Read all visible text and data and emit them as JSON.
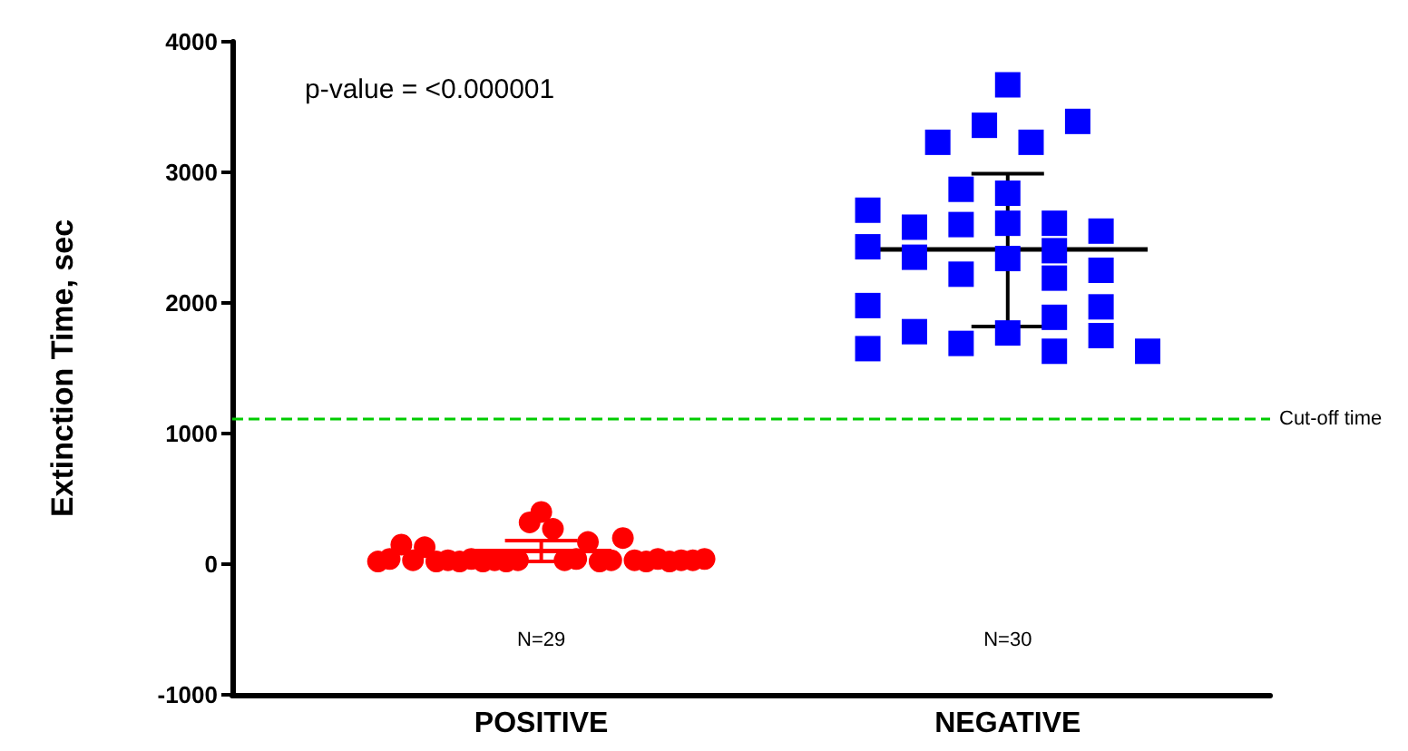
{
  "chart_data": {
    "type": "scatter",
    "ylabel": "Extinction Time, sec",
    "annotations": [
      "p-value = <0.000001",
      "N=29",
      "N=30"
    ],
    "categories": [
      null,
      null,
      null,
      null,
      null,
      null,
      null,
      null,
      null,
      null,
      null,
      null,
      null,
      null,
      null,
      null,
      null,
      null,
      null,
      null,
      null,
      null,
      null,
      null,
      null,
      null,
      "POSITIVE",
      null,
      null,
      null,
      null,
      null,
      null,
      null,
      null,
      null,
      null,
      null,
      null,
      null,
      null,
      null,
      null,
      null,
      null,
      null,
      null,
      null,
      null,
      null,
      null,
      null,
      null,
      null,
      null,
      null,
      null,
      null,
      null,
      null,
      null,
      null,
      null,
      null,
      null,
      null,
      "NEGATIVE",
      null,
      null,
      null,
      null,
      null,
      null,
      null,
      null,
      null,
      null,
      null,
      null,
      null,
      null,
      null,
      null,
      null,
      null,
      null,
      null,
      null,
      null
    ],
    "ylim": [
      -1000,
      4000
    ],
    "yticks": [
      -1000,
      0,
      1000,
      2000,
      3000,
      4000
    ],
    "grid": false,
    "ref_lines": [
      {
        "axis": "y",
        "value": 1110,
        "label": "Cut-off time",
        "color": "#00cc00",
        "line_style": "dashed"
      }
    ],
    "series": [
      {
        "color": "#ff0000",
        "marker": "circle",
        "values": [
          null,
          null,
          null,
          null,
          null,
          null,
          null,
          null,
          null,
          null,
          null,
          null,
          20,
          40,
          150,
          30,
          130,
          20,
          30,
          20,
          40,
          20,
          30,
          20,
          30,
          320,
          400,
          270,
          30,
          40,
          170,
          20,
          30,
          200,
          30,
          20,
          40,
          20,
          30,
          30,
          40,
          null,
          null,
          null,
          null,
          null,
          null,
          null,
          null,
          null,
          null,
          null,
          null,
          null,
          null,
          null,
          null,
          null,
          null,
          null,
          null,
          null,
          null,
          null,
          null,
          null,
          null,
          null,
          null,
          null,
          null,
          null,
          null,
          null,
          null,
          null,
          null,
          null,
          null,
          null,
          null,
          null,
          null,
          null,
          null,
          null,
          null,
          null,
          null
        ]
      },
      {
        "type": "line",
        "color": "#ff0000",
        "values": [
          null,
          null,
          null,
          null,
          null,
          null,
          null,
          null,
          null,
          null,
          null,
          null,
          null,
          null,
          null,
          null,
          null,
          null,
          null,
          null,
          100,
          100,
          100,
          100,
          100,
          100,
          100,
          100,
          100,
          100,
          100,
          100,
          100,
          null,
          null,
          null,
          null,
          null,
          null,
          null,
          null,
          null,
          null,
          null,
          null,
          null,
          null,
          null,
          null,
          null,
          null,
          null,
          null,
          null,
          null,
          null,
          null,
          null,
          null,
          null,
          null,
          null,
          null,
          null,
          null,
          null,
          null,
          null,
          null,
          null,
          null,
          null,
          null,
          null,
          null,
          null,
          null,
          null,
          null,
          null,
          null,
          null,
          null,
          null,
          null,
          null,
          null,
          null,
          null
        ],
        "errors": [
          null,
          null,
          null,
          null,
          null,
          null,
          null,
          null,
          null,
          null,
          null,
          null,
          null,
          null,
          null,
          null,
          null,
          null,
          null,
          null,
          null,
          null,
          null,
          null,
          null,
          null,
          [
            20,
            180
          ],
          null,
          null,
          null,
          null,
          null,
          null,
          null,
          null,
          null,
          null,
          null,
          null,
          null,
          null,
          null,
          null,
          null,
          null,
          null,
          null,
          null,
          null,
          null,
          null,
          null,
          null,
          null,
          null,
          null,
          null,
          null,
          null,
          null,
          null,
          null,
          null,
          null,
          null,
          null,
          null,
          null,
          null,
          null,
          null,
          null,
          null,
          null,
          null,
          null,
          null,
          null,
          null,
          null,
          null,
          null,
          null,
          null,
          null,
          null,
          null,
          null,
          null
        ]
      },
      {
        "color": "#0000ff",
        "marker": "square",
        "values": [
          null,
          null,
          null,
          null,
          null,
          null,
          null,
          null,
          null,
          null,
          null,
          null,
          null,
          null,
          null,
          null,
          null,
          null,
          null,
          null,
          null,
          null,
          null,
          null,
          null,
          null,
          null,
          null,
          null,
          null,
          null,
          null,
          null,
          null,
          null,
          null,
          null,
          null,
          null,
          null,
          null,
          null,
          null,
          null,
          null,
          null,
          null,
          null,
          null,
          null,
          null,
          null,
          null,
          null,
          2710,
          null,
          null,
          null,
          2580,
          null,
          3230,
          null,
          2870,
          null,
          3360,
          null,
          3670,
          null,
          3230,
          null,
          2610,
          null,
          3390,
          null,
          2550,
          null,
          null,
          null,
          1630,
          null,
          null,
          null,
          null,
          null,
          null,
          null,
          null,
          null,
          null
        ]
      },
      {
        "color": "#0000ff",
        "marker": "square",
        "values": [
          null,
          null,
          null,
          null,
          null,
          null,
          null,
          null,
          null,
          null,
          null,
          null,
          null,
          null,
          null,
          null,
          null,
          null,
          null,
          null,
          null,
          null,
          null,
          null,
          null,
          null,
          null,
          null,
          null,
          null,
          null,
          null,
          null,
          null,
          null,
          null,
          null,
          null,
          null,
          null,
          null,
          null,
          null,
          null,
          null,
          null,
          null,
          null,
          null,
          null,
          null,
          null,
          null,
          null,
          2430,
          null,
          null,
          null,
          2350,
          null,
          null,
          null,
          2600,
          null,
          null,
          null,
          2840,
          null,
          null,
          null,
          2400,
          null,
          null,
          null,
          2250,
          null,
          null,
          null,
          null,
          null,
          null,
          null,
          null,
          null,
          null,
          null,
          null,
          null,
          null
        ]
      },
      {
        "color": "#0000ff",
        "marker": "square",
        "values": [
          null,
          null,
          null,
          null,
          null,
          null,
          null,
          null,
          null,
          null,
          null,
          null,
          null,
          null,
          null,
          null,
          null,
          null,
          null,
          null,
          null,
          null,
          null,
          null,
          null,
          null,
          null,
          null,
          null,
          null,
          null,
          null,
          null,
          null,
          null,
          null,
          null,
          null,
          null,
          null,
          null,
          null,
          null,
          null,
          null,
          null,
          null,
          null,
          null,
          null,
          null,
          null,
          null,
          null,
          1980,
          null,
          null,
          null,
          1780,
          null,
          null,
          null,
          2220,
          null,
          null,
          null,
          2610,
          null,
          null,
          null,
          2190,
          null,
          null,
          null,
          1970,
          null,
          null,
          null,
          null,
          null,
          null,
          null,
          null,
          null,
          null,
          null,
          null,
          null,
          null
        ]
      },
      {
        "color": "#0000ff",
        "marker": "square",
        "values": [
          null,
          null,
          null,
          null,
          null,
          null,
          null,
          null,
          null,
          null,
          null,
          null,
          null,
          null,
          null,
          null,
          null,
          null,
          null,
          null,
          null,
          null,
          null,
          null,
          null,
          null,
          null,
          null,
          null,
          null,
          null,
          null,
          null,
          null,
          null,
          null,
          null,
          null,
          null,
          null,
          null,
          null,
          null,
          null,
          null,
          null,
          null,
          null,
          null,
          null,
          null,
          null,
          null,
          null,
          1650,
          null,
          null,
          null,
          null,
          null,
          null,
          null,
          1690,
          null,
          null,
          null,
          2340,
          null,
          null,
          null,
          1890,
          null,
          null,
          null,
          1750,
          null,
          null,
          null,
          null,
          null,
          null,
          null,
          null,
          null,
          null,
          null,
          null,
          null,
          null
        ]
      },
      {
        "color": "#0000ff",
        "marker": "square",
        "values": [
          null,
          null,
          null,
          null,
          null,
          null,
          null,
          null,
          null,
          null,
          null,
          null,
          null,
          null,
          null,
          null,
          null,
          null,
          null,
          null,
          null,
          null,
          null,
          null,
          null,
          null,
          null,
          null,
          null,
          null,
          null,
          null,
          null,
          null,
          null,
          null,
          null,
          null,
          null,
          null,
          null,
          null,
          null,
          null,
          null,
          null,
          null,
          null,
          null,
          null,
          null,
          null,
          null,
          null,
          null,
          null,
          null,
          null,
          null,
          null,
          null,
          null,
          null,
          null,
          null,
          null,
          1770,
          null,
          null,
          null,
          1630,
          null,
          null,
          null,
          null,
          null,
          null,
          null,
          null,
          null,
          null,
          null,
          null,
          null,
          null,
          null,
          null,
          null,
          null
        ]
      },
      {
        "type": "line",
        "color": "#000000",
        "values": [
          null,
          null,
          null,
          null,
          null,
          null,
          null,
          null,
          null,
          null,
          null,
          null,
          null,
          null,
          null,
          null,
          null,
          null,
          null,
          null,
          null,
          null,
          null,
          null,
          null,
          null,
          null,
          null,
          null,
          null,
          null,
          null,
          null,
          null,
          null,
          null,
          null,
          null,
          null,
          null,
          null,
          null,
          null,
          null,
          null,
          null,
          null,
          null,
          null,
          null,
          null,
          null,
          null,
          null,
          2410,
          2410,
          2410,
          2410,
          2410,
          2410,
          2410,
          2410,
          2410,
          2410,
          2410,
          2410,
          2410,
          2410,
          2410,
          2410,
          2410,
          2410,
          2410,
          2410,
          2410,
          2410,
          2410,
          2410,
          2410,
          null,
          null,
          null,
          null,
          null,
          null,
          null,
          null,
          null,
          null
        ],
        "errors": [
          null,
          null,
          null,
          null,
          null,
          null,
          null,
          null,
          null,
          null,
          null,
          null,
          null,
          null,
          null,
          null,
          null,
          null,
          null,
          null,
          null,
          null,
          null,
          null,
          null,
          null,
          null,
          null,
          null,
          null,
          null,
          null,
          null,
          null,
          null,
          null,
          null,
          null,
          null,
          null,
          null,
          null,
          null,
          null,
          null,
          null,
          null,
          null,
          null,
          null,
          null,
          null,
          null,
          null,
          null,
          null,
          null,
          null,
          null,
          null,
          null,
          null,
          null,
          null,
          null,
          null,
          [
            1820,
            2990
          ],
          null,
          null,
          null,
          null,
          null,
          null,
          null,
          null,
          null,
          null,
          null,
          null,
          null,
          null,
          null,
          null,
          null,
          null,
          null,
          null,
          null,
          null
        ]
      }
    ]
  }
}
